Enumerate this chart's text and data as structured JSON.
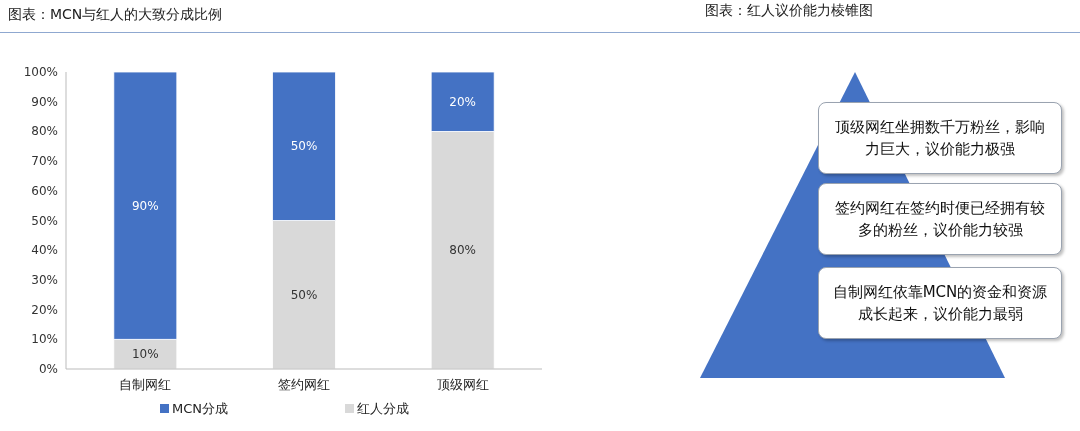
{
  "chart_data": [
    {
      "type": "bar",
      "title": "图表：MCN与红人的大致分成比例",
      "categories": [
        "自制网红",
        "签约网红",
        "顶级网红"
      ],
      "stacked": true,
      "ylim": [
        0,
        100
      ],
      "yticks": [
        {
          "value": 0,
          "label": "0%"
        },
        {
          "value": 10,
          "label": "10%"
        },
        {
          "value": 20,
          "label": "20%"
        },
        {
          "value": 30,
          "label": "30%"
        },
        {
          "value": 40,
          "label": "40%"
        },
        {
          "value": 50,
          "label": "50%"
        },
        {
          "value": 60,
          "label": "60%"
        },
        {
          "value": 70,
          "label": "70%"
        },
        {
          "value": 80,
          "label": "80%"
        },
        {
          "value": 90,
          "label": "90%"
        },
        {
          "value": 100,
          "label": "100%"
        }
      ],
      "legend": "bottom",
      "grid": false,
      "series": [
        {
          "name": "红人分成",
          "color": "#d9d9d9",
          "values": [
            10,
            50,
            80
          ],
          "value_labels": [
            "10%",
            "50%",
            "80%"
          ]
        },
        {
          "name": "MCN分成",
          "color": "#4472c4",
          "values": [
            90,
            50,
            20
          ],
          "value_labels": [
            "90%",
            "50%",
            "20%"
          ]
        }
      ]
    },
    {
      "type": "other",
      "title": "图表：红人议价能力棱锥图",
      "annotations": [
        "顶级网红坐拥数千万粉丝，影响力巨大，议价能力极强",
        "签约网红在签约时便已经拥有较多的粉丝，议价能力较强",
        "自制网红依靠MCN的资金和资源成长起来，议价能力最弱"
      ]
    }
  ]
}
